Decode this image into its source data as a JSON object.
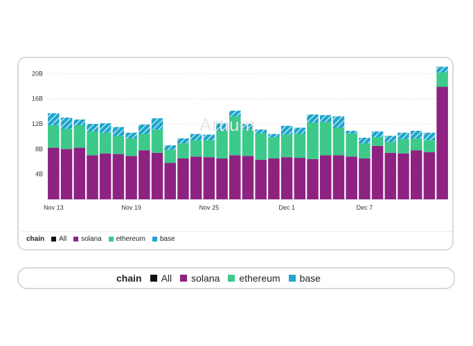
{
  "chart_data": {
    "type": "bar",
    "stacked": true,
    "x_tick_labels": [
      "Nov 13",
      "Nov 19",
      "Nov 25",
      "Dec 1",
      "Dec 7"
    ],
    "y_tick_labels": [
      "4B",
      "8B",
      "12B",
      "16B",
      "20B"
    ],
    "ylim": [
      0,
      21.5
    ],
    "categories": [
      "Nov 13",
      "Nov 14",
      "Nov 15",
      "Nov 16",
      "Nov 17",
      "Nov 18",
      "Nov 19",
      "Nov 20",
      "Nov 21",
      "Nov 22",
      "Nov 23",
      "Nov 24",
      "Nov 25",
      "Nov 26",
      "Nov 27",
      "Nov 28",
      "Nov 29",
      "Nov 30",
      "Dec 1",
      "Dec 2",
      "Dec 3",
      "Dec 4",
      "Dec 5",
      "Dec 6",
      "Dec 7",
      "Dec 8",
      "Dec 9",
      "Dec 10",
      "Dec 11",
      "Dec 12",
      "Dec 13"
    ],
    "series": [
      {
        "name": "solana",
        "color": "#8e2281",
        "values": [
          8.2,
          8.0,
          8.2,
          7.0,
          7.3,
          7.2,
          6.9,
          7.8,
          7.4,
          5.8,
          6.5,
          6.8,
          6.7,
          6.5,
          7.0,
          6.9,
          6.3,
          6.5,
          6.7,
          6.6,
          6.4,
          7.0,
          7.0,
          6.8,
          6.5,
          8.5,
          7.4,
          7.3,
          7.8,
          7.5,
          17.9
        ]
      },
      {
        "name": "ethereum",
        "color": "#3cc98a",
        "values": [
          3.6,
          3.2,
          3.6,
          3.8,
          3.3,
          2.9,
          2.8,
          2.6,
          3.7,
          2.1,
          2.4,
          2.6,
          2.7,
          4.4,
          6.2,
          4.3,
          4.2,
          3.4,
          3.6,
          3.8,
          5.8,
          5.3,
          4.4,
          3.7,
          2.4,
          1.4,
          1.7,
          2.3,
          1.9,
          1.9,
          2.3
        ]
      },
      {
        "name": "base",
        "color": "#1fa6cc",
        "values": [
          1.9,
          1.8,
          0.9,
          1.2,
          1.5,
          1.4,
          0.9,
          1.5,
          1.8,
          0.7,
          0.8,
          1.0,
          0.9,
          1.2,
          0.9,
          0.8,
          0.6,
          0.5,
          1.4,
          1.0,
          1.3,
          1.1,
          1.8,
          0.4,
          0.9,
          0.9,
          1.0,
          1.0,
          1.2,
          1.2,
          0.9
        ]
      }
    ],
    "xlabel": "",
    "ylabel": "",
    "grid": true
  },
  "watermark": "Artium",
  "legend": {
    "title": "chain",
    "items": [
      {
        "label": "All",
        "color": "#111111"
      },
      {
        "label": "solana",
        "color": "#8e2281"
      },
      {
        "label": "ethereum",
        "color": "#3cc98a"
      },
      {
        "label": "base",
        "color": "#1fa6cc"
      }
    ]
  }
}
